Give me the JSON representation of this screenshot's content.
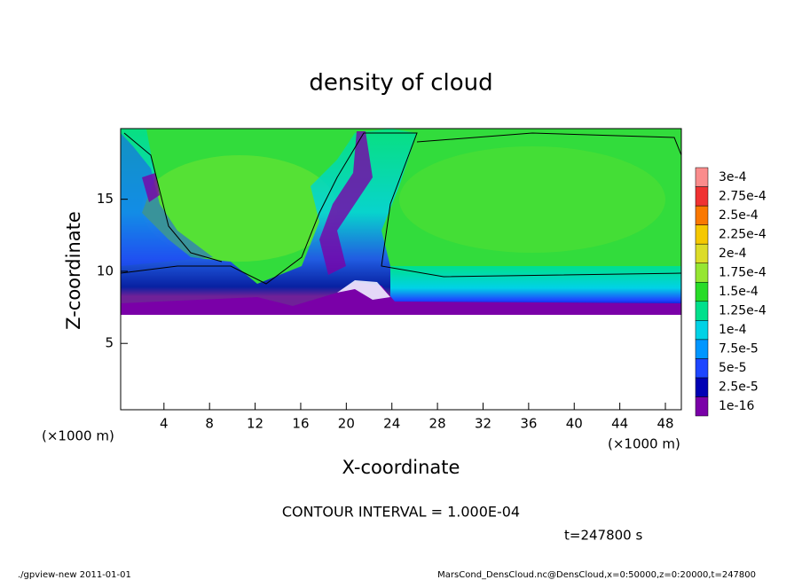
{
  "chart_data": {
    "type": "contour",
    "title": "density of cloud",
    "x_label": "X-coordinate",
    "y_label": "Z-coordinate",
    "x_unit": "(×1000 m)",
    "xlim": [
      0.2,
      49.4
    ],
    "xticks": [
      4,
      8,
      12,
      16,
      20,
      24,
      28,
      32,
      36,
      40,
      44,
      48
    ],
    "ylim": [
      0.4,
      19.9
    ],
    "yticks": [
      5,
      10,
      15
    ],
    "colorbar": {
      "levels": [
        {
          "value": 1e-16,
          "label": "1e-16"
        },
        {
          "value": 2.5e-05,
          "label": "2.5e-5"
        },
        {
          "value": 5e-05,
          "label": "5e-5"
        },
        {
          "value": 7.5e-05,
          "label": "7.5e-5"
        },
        {
          "value": 0.0001,
          "label": "1e-4"
        },
        {
          "value": 0.000125,
          "label": "1.25e-4"
        },
        {
          "value": 0.00015,
          "label": "1.5e-4"
        },
        {
          "value": 0.000175,
          "label": "1.75e-4"
        },
        {
          "value": 0.0002,
          "label": "2e-4"
        },
        {
          "value": 0.000225,
          "label": "2.25e-4"
        },
        {
          "value": 0.00025,
          "label": "2.5e-4"
        },
        {
          "value": 0.000275,
          "label": "2.75e-4"
        },
        {
          "value": 0.0003,
          "label": "3e-4"
        }
      ],
      "colors": [
        "#7a00a8",
        "#0000b4",
        "#1e46ff",
        "#0096ff",
        "#00d2e6",
        "#00e08c",
        "#28dc28",
        "#96e632",
        "#dcdc28",
        "#f5c800",
        "#fa7800",
        "#f03232",
        "#fa8c8c"
      ]
    },
    "contour_interval": "CONTOUR INTERVAL = 1.000E-04",
    "time_label": "t=247800 s",
    "footer_left": "./gpview-new  2011-01-01",
    "footer_right": "MarsCond_DensCloud.nc@DensCloud,x=0:50000,z=0:20000,t=247800"
  }
}
